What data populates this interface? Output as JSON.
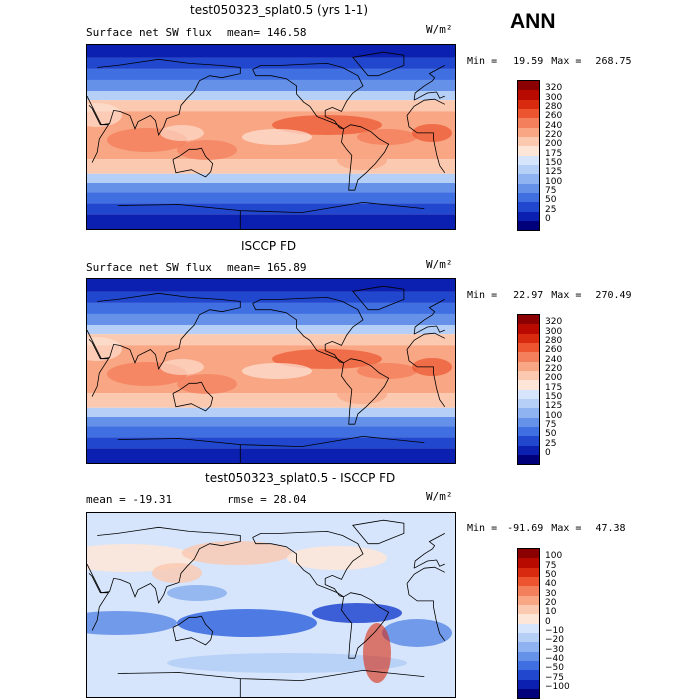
{
  "season_label": "ANN",
  "panels": [
    {
      "id": "model",
      "title": "test050323_splat0.5 (yrs 1-1)",
      "variable": "Surface net SW flux",
      "stat_left": "mean= 146.58",
      "stat_right": "",
      "units": "W/m²",
      "min_label": "Min =",
      "min_value": "19.59",
      "max_label": "Max =",
      "max_value": "268.75",
      "colorbar_labels": [
        "320",
        "300",
        "280",
        "260",
        "240",
        "220",
        "200",
        "175",
        "150",
        "125",
        "100",
        "75",
        "50",
        "25",
        "0"
      ],
      "colorbar_colors": [
        "#8b0000",
        "#b90a00",
        "#d82a0f",
        "#ec5530",
        "#f47f5c",
        "#f9a684",
        "#fbc8b0",
        "#fde6d8",
        "#d6e5fb",
        "#b5cff6",
        "#8fb3f0",
        "#6691e8",
        "#3f6fe0",
        "#2147cf",
        "#0b1fb0",
        "#00007a"
      ],
      "map_palette": "flux"
    },
    {
      "id": "obs",
      "title": "ISCCP FD",
      "variable": "Surface net SW flux",
      "stat_left": "mean= 165.89",
      "stat_right": "",
      "units": "W/m²",
      "min_label": "Min =",
      "min_value": "22.97",
      "max_label": "Max =",
      "max_value": "270.49",
      "colorbar_labels": [
        "320",
        "300",
        "280",
        "260",
        "240",
        "220",
        "200",
        "175",
        "150",
        "125",
        "100",
        "75",
        "50",
        "25",
        "0"
      ],
      "colorbar_colors": [
        "#8b0000",
        "#b90a00",
        "#d82a0f",
        "#ec5530",
        "#f47f5c",
        "#f9a684",
        "#fbc8b0",
        "#fde6d8",
        "#d6e5fb",
        "#b5cff6",
        "#8fb3f0",
        "#6691e8",
        "#3f6fe0",
        "#2147cf",
        "#0b1fb0",
        "#00007a"
      ],
      "map_palette": "flux"
    },
    {
      "id": "diff",
      "title": "test050323_splat0.5 - ISCCP FD",
      "variable": "",
      "stat_left": "mean = -19.31",
      "stat_right": "rmse =  28.04",
      "units": "W/m²",
      "min_label": "Min =",
      "min_value": "-91.69",
      "max_label": "Max =",
      "max_value": "47.38",
      "colorbar_labels": [
        "100",
        "75",
        "50",
        "40",
        "30",
        "20",
        "10",
        "0",
        "−10",
        "−20",
        "−30",
        "−40",
        "−50",
        "−75",
        "−100"
      ],
      "colorbar_colors": [
        "#8b0000",
        "#b90a00",
        "#d82a0f",
        "#ec5530",
        "#f47f5c",
        "#f9a684",
        "#fbc8b0",
        "#fde6d8",
        "#d6e5fb",
        "#b5cff6",
        "#8fb3f0",
        "#6691e8",
        "#3f6fe0",
        "#2147cf",
        "#0b1fb0",
        "#00007a"
      ],
      "map_palette": "diff"
    }
  ]
}
